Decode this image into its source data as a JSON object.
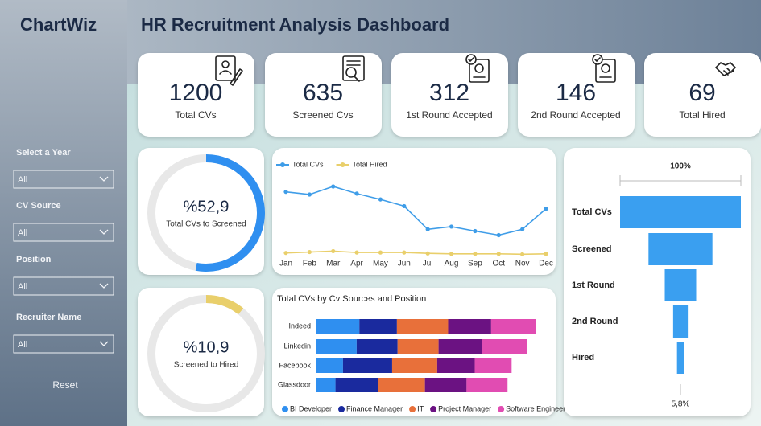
{
  "header": {
    "brand": "ChartWiz",
    "title": "HR Recruitment Analysis Dashboard"
  },
  "filters": [
    {
      "label": "Select a Year",
      "value": "All"
    },
    {
      "label": "CV Source",
      "value": "All"
    },
    {
      "label": "Position",
      "value": "All"
    },
    {
      "label": "Recruiter Name",
      "value": "All"
    }
  ],
  "reset": "Reset",
  "kpis": [
    {
      "value": 1200,
      "label": "Total CVs"
    },
    {
      "value": 635,
      "label": "Screened Cvs"
    },
    {
      "value": 312,
      "label": "1st Round Accepted"
    },
    {
      "value": 146,
      "label": "2nd Round Accepted"
    },
    {
      "value": 69,
      "label": "Total Hired"
    }
  ],
  "chart_data": [
    {
      "type": "donut",
      "value": 52.9,
      "value_label": "%52,9",
      "title": "Total CVs to Screened",
      "color": "#2f8ff0"
    },
    {
      "type": "line",
      "categories": [
        "Jan",
        "Feb",
        "Mar",
        "Apr",
        "May",
        "Jun",
        "Jul",
        "Aug",
        "Sep",
        "Oct",
        "Nov",
        "Dec"
      ],
      "series": [
        {
          "name": "Total CVs",
          "color": "#3f9de8",
          "values": [
            143,
            137,
            155,
            139,
            126,
            111,
            59,
            65,
            55,
            46,
            59,
            105
          ]
        },
        {
          "name": "Total Hired",
          "color": "#e9cf6b",
          "values": [
            6,
            8,
            10,
            7,
            7,
            7,
            5,
            4,
            4,
            4,
            3,
            4
          ]
        }
      ],
      "legend": "top-left"
    },
    {
      "type": "stacked-bar",
      "title": "Total CVs by Cv Sources and Position",
      "categories": [
        "Indeed",
        "Linkedin",
        "Facebook",
        "Glassdoor"
      ],
      "series": [
        {
          "name": "BI Developer",
          "color": "#2f8ff0",
          "values": [
            64,
            60,
            40,
            29
          ]
        },
        {
          "name": "Finance Manager",
          "color": "#1a2a9e",
          "values": [
            55,
            60,
            72,
            63
          ]
        },
        {
          "name": "IT",
          "color": "#e8703a",
          "values": [
            75,
            60,
            66,
            68
          ]
        },
        {
          "name": "Project Manager",
          "color": "#6b1282",
          "values": [
            63,
            63,
            55,
            61
          ]
        },
        {
          "name": "Software Engineer",
          "color": "#e14cb2",
          "values": [
            65,
            67,
            54,
            60
          ]
        }
      ],
      "legend": "bottom"
    },
    {
      "type": "funnel",
      "categories": [
        "Total CVs",
        "Screened",
        "1st Round",
        "2nd Round",
        "Hired"
      ],
      "values": [
        1200,
        635,
        312,
        146,
        69
      ],
      "color": "#3a9ff0",
      "top_label": {
        "value": 100,
        "label": "100%"
      },
      "bottom_label": {
        "value": 5.8,
        "label": "5,8%"
      }
    },
    {
      "type": "donut",
      "value": 10.9,
      "value_label": "%10,9",
      "title": "Screened to Hired",
      "color": "#e9cf6b"
    }
  ]
}
